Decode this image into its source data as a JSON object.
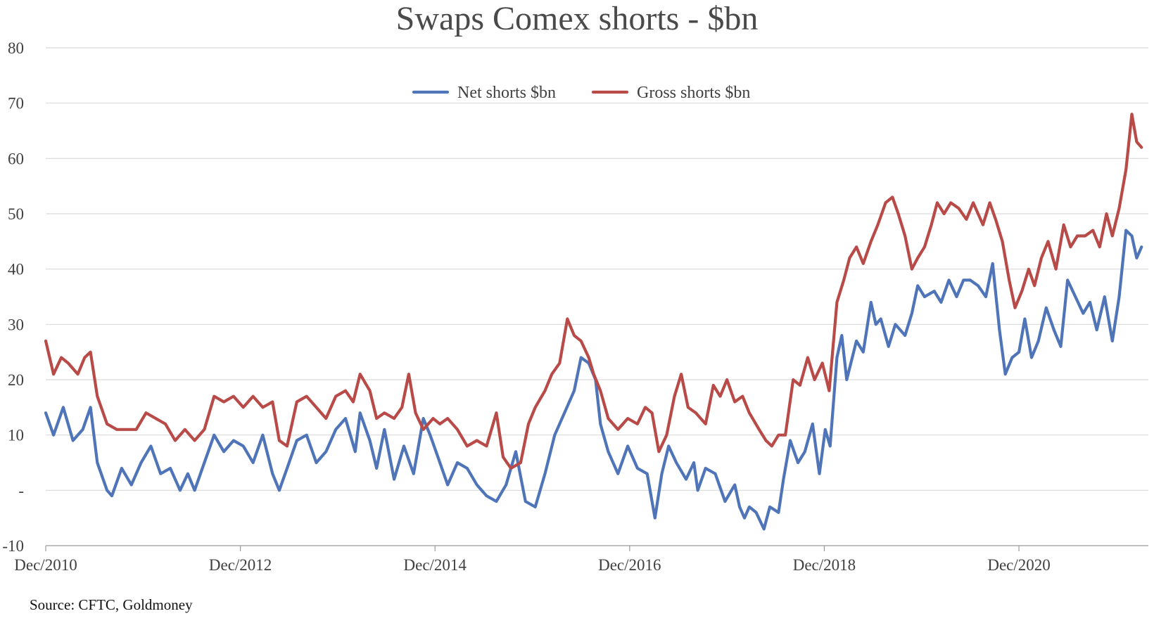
{
  "chart_data": {
    "type": "line",
    "title": "Swaps Comex shorts - $bn",
    "xlabel": "",
    "ylabel": "",
    "ylim": [
      -10,
      80
    ],
    "yticks": [
      {
        "value": 80,
        "label": "80"
      },
      {
        "value": 70,
        "label": "70"
      },
      {
        "value": 60,
        "label": "60"
      },
      {
        "value": 50,
        "label": "50"
      },
      {
        "value": 40,
        "label": "40"
      },
      {
        "value": 30,
        "label": "30"
      },
      {
        "value": 20,
        "label": "20"
      },
      {
        "value": 10,
        "label": "10"
      },
      {
        "value": 0,
        "label": "-"
      },
      {
        "value": -10,
        "label": "-10"
      }
    ],
    "xlim": [
      2010.92,
      2022.25
    ],
    "xticks": [
      {
        "value": 2010.92,
        "label": "Dec/2010"
      },
      {
        "value": 2012.92,
        "label": "Dec/2012"
      },
      {
        "value": 2014.92,
        "label": "Dec/2014"
      },
      {
        "value": 2016.92,
        "label": "Dec/2016"
      },
      {
        "value": 2018.92,
        "label": "Dec/2018"
      },
      {
        "value": 2020.92,
        "label": "Dec/2020"
      }
    ],
    "grid": true,
    "legend_position": "top-center",
    "series": [
      {
        "name": "Net shorts $bn",
        "color": "#4f75b8",
        "points": [
          [
            2010.92,
            14
          ],
          [
            2011.0,
            10
          ],
          [
            2011.1,
            15
          ],
          [
            2011.2,
            9
          ],
          [
            2011.3,
            11
          ],
          [
            2011.38,
            15
          ],
          [
            2011.45,
            5
          ],
          [
            2011.55,
            0
          ],
          [
            2011.6,
            -1
          ],
          [
            2011.7,
            4
          ],
          [
            2011.8,
            1
          ],
          [
            2011.9,
            5
          ],
          [
            2012.0,
            8
          ],
          [
            2012.1,
            3
          ],
          [
            2012.2,
            4
          ],
          [
            2012.3,
            0
          ],
          [
            2012.38,
            3
          ],
          [
            2012.45,
            0
          ],
          [
            2012.55,
            5
          ],
          [
            2012.65,
            10
          ],
          [
            2012.75,
            7
          ],
          [
            2012.85,
            9
          ],
          [
            2012.95,
            8
          ],
          [
            2013.05,
            5
          ],
          [
            2013.15,
            10
          ],
          [
            2013.25,
            3
          ],
          [
            2013.32,
            0
          ],
          [
            2013.4,
            4
          ],
          [
            2013.5,
            9
          ],
          [
            2013.6,
            10
          ],
          [
            2013.7,
            5
          ],
          [
            2013.8,
            7
          ],
          [
            2013.9,
            11
          ],
          [
            2014.0,
            13
          ],
          [
            2014.1,
            7
          ],
          [
            2014.15,
            14
          ],
          [
            2014.25,
            9
          ],
          [
            2014.32,
            4
          ],
          [
            2014.4,
            11
          ],
          [
            2014.5,
            2
          ],
          [
            2014.55,
            5
          ],
          [
            2014.6,
            8
          ],
          [
            2014.7,
            3
          ],
          [
            2014.8,
            13
          ],
          [
            2014.87,
            10
          ],
          [
            2014.95,
            6
          ],
          [
            2015.05,
            1
          ],
          [
            2015.15,
            5
          ],
          [
            2015.25,
            4
          ],
          [
            2015.35,
            1
          ],
          [
            2015.45,
            -1
          ],
          [
            2015.55,
            -2
          ],
          [
            2015.65,
            1
          ],
          [
            2015.75,
            7
          ],
          [
            2015.85,
            -2
          ],
          [
            2015.95,
            -3
          ],
          [
            2016.05,
            3
          ],
          [
            2016.15,
            10
          ],
          [
            2016.25,
            14
          ],
          [
            2016.35,
            18
          ],
          [
            2016.42,
            24
          ],
          [
            2016.5,
            23
          ],
          [
            2016.57,
            20
          ],
          [
            2016.62,
            12
          ],
          [
            2016.7,
            7
          ],
          [
            2016.8,
            3
          ],
          [
            2016.9,
            8
          ],
          [
            2017.0,
            4
          ],
          [
            2017.1,
            3
          ],
          [
            2017.18,
            -5
          ],
          [
            2017.25,
            3
          ],
          [
            2017.32,
            8
          ],
          [
            2017.4,
            5
          ],
          [
            2017.5,
            2
          ],
          [
            2017.58,
            5
          ],
          [
            2017.62,
            0
          ],
          [
            2017.7,
            4
          ],
          [
            2017.8,
            3
          ],
          [
            2017.9,
            -2
          ],
          [
            2018.0,
            1
          ],
          [
            2018.05,
            -3
          ],
          [
            2018.1,
            -5
          ],
          [
            2018.15,
            -3
          ],
          [
            2018.22,
            -4
          ],
          [
            2018.3,
            -7
          ],
          [
            2018.36,
            -3
          ],
          [
            2018.45,
            -4
          ],
          [
            2018.5,
            2
          ],
          [
            2018.57,
            9
          ],
          [
            2018.65,
            5
          ],
          [
            2018.72,
            7
          ],
          [
            2018.8,
            12
          ],
          [
            2018.87,
            3
          ],
          [
            2018.93,
            11
          ],
          [
            2018.98,
            8
          ],
          [
            2019.05,
            24
          ],
          [
            2019.1,
            28
          ],
          [
            2019.15,
            20
          ],
          [
            2019.25,
            27
          ],
          [
            2019.32,
            25
          ],
          [
            2019.4,
            34
          ],
          [
            2019.45,
            30
          ],
          [
            2019.5,
            31
          ],
          [
            2019.58,
            26
          ],
          [
            2019.65,
            30
          ],
          [
            2019.75,
            28
          ],
          [
            2019.82,
            32
          ],
          [
            2019.88,
            37
          ],
          [
            2019.95,
            35
          ],
          [
            2020.05,
            36
          ],
          [
            2020.12,
            34
          ],
          [
            2020.2,
            38
          ],
          [
            2020.28,
            35
          ],
          [
            2020.35,
            38
          ],
          [
            2020.42,
            38
          ],
          [
            2020.5,
            37
          ],
          [
            2020.58,
            35
          ],
          [
            2020.65,
            41
          ],
          [
            2020.72,
            29
          ],
          [
            2020.78,
            21
          ],
          [
            2020.85,
            24
          ],
          [
            2020.92,
            25
          ],
          [
            2020.98,
            31
          ],
          [
            2021.05,
            24
          ],
          [
            2021.12,
            27
          ],
          [
            2021.2,
            33
          ],
          [
            2021.28,
            29
          ],
          [
            2021.35,
            26
          ],
          [
            2021.42,
            38
          ],
          [
            2021.5,
            35
          ],
          [
            2021.58,
            32
          ],
          [
            2021.65,
            34
          ],
          [
            2021.72,
            29
          ],
          [
            2021.8,
            35
          ],
          [
            2021.88,
            27
          ],
          [
            2021.95,
            35
          ],
          [
            2022.02,
            47
          ],
          [
            2022.08,
            46
          ],
          [
            2022.13,
            42
          ],
          [
            2022.18,
            44
          ]
        ]
      },
      {
        "name": "Gross shorts $bn",
        "color": "#b84a48",
        "points": [
          [
            2010.92,
            27
          ],
          [
            2011.0,
            21
          ],
          [
            2011.08,
            24
          ],
          [
            2011.15,
            23
          ],
          [
            2011.25,
            21
          ],
          [
            2011.32,
            24
          ],
          [
            2011.38,
            25
          ],
          [
            2011.45,
            17
          ],
          [
            2011.55,
            12
          ],
          [
            2011.65,
            11
          ],
          [
            2011.75,
            11
          ],
          [
            2011.85,
            11
          ],
          [
            2011.95,
            14
          ],
          [
            2012.05,
            13
          ],
          [
            2012.15,
            12
          ],
          [
            2012.25,
            9
          ],
          [
            2012.35,
            11
          ],
          [
            2012.45,
            9
          ],
          [
            2012.55,
            11
          ],
          [
            2012.65,
            17
          ],
          [
            2012.75,
            16
          ],
          [
            2012.85,
            17
          ],
          [
            2012.95,
            15
          ],
          [
            2013.05,
            17
          ],
          [
            2013.15,
            15
          ],
          [
            2013.25,
            16
          ],
          [
            2013.32,
            9
          ],
          [
            2013.4,
            8
          ],
          [
            2013.5,
            16
          ],
          [
            2013.6,
            17
          ],
          [
            2013.7,
            15
          ],
          [
            2013.8,
            13
          ],
          [
            2013.9,
            17
          ],
          [
            2014.0,
            18
          ],
          [
            2014.08,
            16
          ],
          [
            2014.15,
            21
          ],
          [
            2014.25,
            18
          ],
          [
            2014.32,
            13
          ],
          [
            2014.4,
            14
          ],
          [
            2014.5,
            13
          ],
          [
            2014.58,
            15
          ],
          [
            2014.65,
            21
          ],
          [
            2014.72,
            14
          ],
          [
            2014.8,
            11
          ],
          [
            2014.9,
            13
          ],
          [
            2014.97,
            12
          ],
          [
            2015.05,
            13
          ],
          [
            2015.15,
            11
          ],
          [
            2015.25,
            8
          ],
          [
            2015.35,
            9
          ],
          [
            2015.45,
            8
          ],
          [
            2015.55,
            14
          ],
          [
            2015.62,
            6
          ],
          [
            2015.7,
            4
          ],
          [
            2015.8,
            5
          ],
          [
            2015.88,
            12
          ],
          [
            2015.95,
            15
          ],
          [
            2016.05,
            18
          ],
          [
            2016.12,
            21
          ],
          [
            2016.2,
            23
          ],
          [
            2016.28,
            31
          ],
          [
            2016.35,
            28
          ],
          [
            2016.42,
            27
          ],
          [
            2016.5,
            24
          ],
          [
            2016.55,
            21
          ],
          [
            2016.62,
            18
          ],
          [
            2016.7,
            13
          ],
          [
            2016.8,
            11
          ],
          [
            2016.9,
            13
          ],
          [
            2017.0,
            12
          ],
          [
            2017.08,
            15
          ],
          [
            2017.15,
            14
          ],
          [
            2017.22,
            7
          ],
          [
            2017.3,
            10
          ],
          [
            2017.38,
            17
          ],
          [
            2017.45,
            21
          ],
          [
            2017.52,
            15
          ],
          [
            2017.6,
            14
          ],
          [
            2017.7,
            12
          ],
          [
            2017.78,
            19
          ],
          [
            2017.85,
            17
          ],
          [
            2017.92,
            20
          ],
          [
            2018.0,
            16
          ],
          [
            2018.08,
            17
          ],
          [
            2018.15,
            14
          ],
          [
            2018.25,
            11
          ],
          [
            2018.32,
            9
          ],
          [
            2018.38,
            8
          ],
          [
            2018.45,
            10
          ],
          [
            2018.52,
            10
          ],
          [
            2018.6,
            20
          ],
          [
            2018.67,
            19
          ],
          [
            2018.75,
            24
          ],
          [
            2018.82,
            20
          ],
          [
            2018.9,
            23
          ],
          [
            2018.97,
            18
          ],
          [
            2019.05,
            34
          ],
          [
            2019.12,
            38
          ],
          [
            2019.18,
            42
          ],
          [
            2019.25,
            44
          ],
          [
            2019.32,
            41
          ],
          [
            2019.4,
            45
          ],
          [
            2019.47,
            48
          ],
          [
            2019.55,
            52
          ],
          [
            2019.62,
            53
          ],
          [
            2019.68,
            50
          ],
          [
            2019.75,
            46
          ],
          [
            2019.82,
            40
          ],
          [
            2019.88,
            42
          ],
          [
            2019.95,
            44
          ],
          [
            2020.02,
            48
          ],
          [
            2020.08,
            52
          ],
          [
            2020.15,
            50
          ],
          [
            2020.22,
            52
          ],
          [
            2020.3,
            51
          ],
          [
            2020.38,
            49
          ],
          [
            2020.45,
            52
          ],
          [
            2020.55,
            48
          ],
          [
            2020.62,
            52
          ],
          [
            2020.68,
            49
          ],
          [
            2020.75,
            45
          ],
          [
            2020.82,
            38
          ],
          [
            2020.88,
            33
          ],
          [
            2020.95,
            36
          ],
          [
            2021.02,
            40
          ],
          [
            2021.08,
            37
          ],
          [
            2021.15,
            42
          ],
          [
            2021.22,
            45
          ],
          [
            2021.3,
            40
          ],
          [
            2021.38,
            48
          ],
          [
            2021.45,
            44
          ],
          [
            2021.52,
            46
          ],
          [
            2021.6,
            46
          ],
          [
            2021.68,
            47
          ],
          [
            2021.75,
            44
          ],
          [
            2021.82,
            50
          ],
          [
            2021.88,
            46
          ],
          [
            2021.95,
            51
          ],
          [
            2022.02,
            58
          ],
          [
            2022.08,
            68
          ],
          [
            2022.13,
            63
          ],
          [
            2022.18,
            62
          ]
        ]
      }
    ]
  },
  "source_note": "Source: CFTC, Goldmoney"
}
